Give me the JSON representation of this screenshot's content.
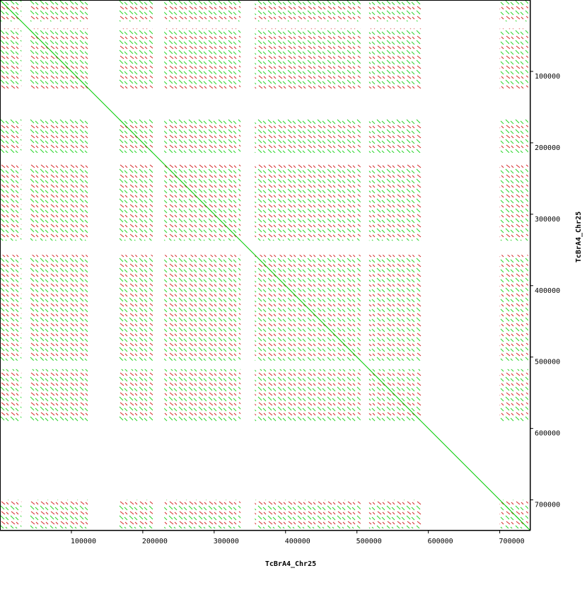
{
  "chart_data": {
    "type": "dotplot",
    "x_label": "TcBrA4_Chr25",
    "y_label": "TcBrA4_Chr25",
    "xlim": [
      0,
      743000
    ],
    "ylim": [
      0,
      743000
    ],
    "xticks": [
      100000,
      200000,
      300000,
      400000,
      500000,
      600000,
      700000
    ],
    "yticks": [
      100000,
      200000,
      300000,
      400000,
      500000,
      600000,
      700000
    ],
    "forward_color": "#00cc00",
    "reverse_color": "#cc0000",
    "diagonal": {
      "x": [
        0,
        743000
      ],
      "y": [
        0,
        743000
      ]
    },
    "clusters": [
      [
        0,
        30000
      ],
      [
        40000,
        124000
      ],
      [
        167000,
        214000
      ],
      [
        230000,
        337000
      ],
      [
        357000,
        505000
      ],
      [
        517000,
        590000
      ],
      [
        700000,
        740000
      ]
    ]
  }
}
